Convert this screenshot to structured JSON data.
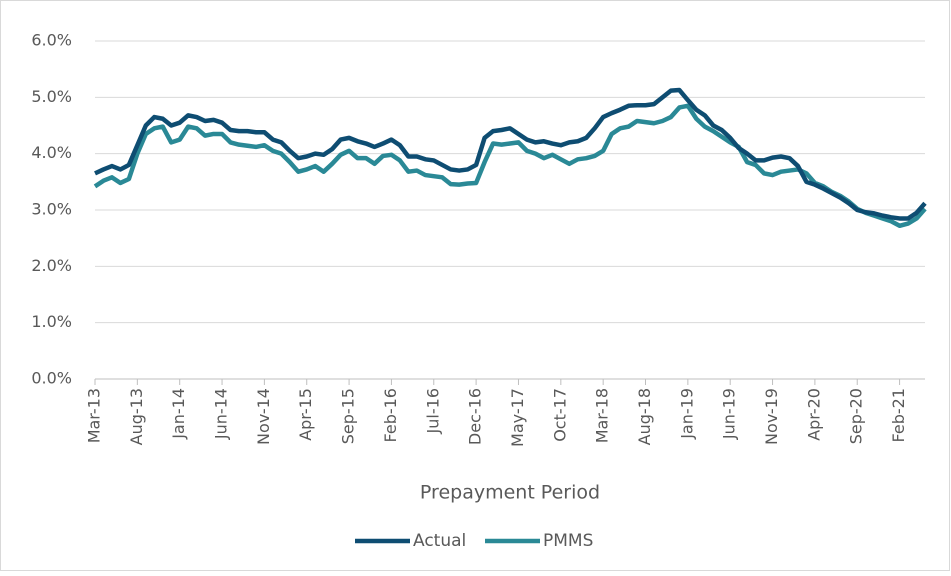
{
  "chart_data": {
    "type": "line",
    "x_label": "Prepayment Period",
    "categories": [
      "Mar-13",
      null,
      null,
      null,
      null,
      "Aug-13",
      null,
      null,
      null,
      null,
      "Jan-14",
      null,
      null,
      null,
      null,
      "Jun-14",
      null,
      null,
      null,
      null,
      "Nov-14",
      null,
      null,
      null,
      null,
      "Apr-15",
      null,
      null,
      null,
      null,
      "Sep-15",
      null,
      null,
      null,
      null,
      "Feb-16",
      null,
      null,
      null,
      null,
      "Jul-16",
      null,
      null,
      null,
      null,
      "Dec-16",
      null,
      null,
      null,
      null,
      "May-17",
      null,
      null,
      null,
      null,
      "Oct-17",
      null,
      null,
      null,
      null,
      "Mar-18",
      null,
      null,
      null,
      null,
      "Aug-18",
      null,
      null,
      null,
      null,
      "Jan-19",
      null,
      null,
      null,
      null,
      "Jun-19",
      null,
      null,
      null,
      null,
      "Nov-19",
      null,
      null,
      null,
      null,
      "Apr-20",
      null,
      null,
      null,
      null,
      "Sep-20",
      null,
      null,
      null,
      null,
      "Feb-21",
      null,
      null,
      null
    ],
    "series": [
      {
        "name": "Actual",
        "color": "#0e4d72",
        "values": [
          3.65,
          3.72,
          3.78,
          3.72,
          3.8,
          4.15,
          4.5,
          4.65,
          4.62,
          4.5,
          4.55,
          4.68,
          4.65,
          4.58,
          4.6,
          4.55,
          4.42,
          4.4,
          4.4,
          4.38,
          4.38,
          4.25,
          4.2,
          4.05,
          3.92,
          3.95,
          4.0,
          3.98,
          4.08,
          4.25,
          4.28,
          4.22,
          4.18,
          4.12,
          4.18,
          4.25,
          4.15,
          3.95,
          3.95,
          3.9,
          3.88,
          3.8,
          3.72,
          3.7,
          3.72,
          3.8,
          4.28,
          4.4,
          4.42,
          4.45,
          4.35,
          4.25,
          4.2,
          4.22,
          4.18,
          4.15,
          4.2,
          4.22,
          4.28,
          4.45,
          4.65,
          4.72,
          4.78,
          4.85,
          4.86,
          4.86,
          4.88,
          5.0,
          5.12,
          5.13,
          4.95,
          4.78,
          4.68,
          4.5,
          4.42,
          4.28,
          4.1,
          4.0,
          3.88,
          3.88,
          3.93,
          3.95,
          3.92,
          3.78,
          3.5,
          3.45,
          3.38,
          3.3,
          3.22,
          3.12,
          3.0,
          2.96,
          2.94,
          2.9,
          2.87,
          2.85,
          2.85,
          2.95,
          3.12
        ]
      },
      {
        "name": "PMMS",
        "color": "#2a8996",
        "values": [
          3.42,
          3.52,
          3.58,
          3.48,
          3.55,
          4.0,
          4.35,
          4.45,
          4.48,
          4.2,
          4.25,
          4.48,
          4.45,
          4.32,
          4.35,
          4.35,
          4.2,
          4.16,
          4.14,
          4.12,
          4.15,
          4.05,
          4.0,
          3.85,
          3.68,
          3.72,
          3.78,
          3.68,
          3.82,
          3.98,
          4.05,
          3.92,
          3.92,
          3.82,
          3.96,
          3.98,
          3.88,
          3.68,
          3.7,
          3.62,
          3.6,
          3.58,
          3.46,
          3.45,
          3.47,
          3.48,
          3.85,
          4.18,
          4.16,
          4.18,
          4.2,
          4.05,
          4.0,
          3.92,
          3.98,
          3.9,
          3.82,
          3.9,
          3.92,
          3.96,
          4.05,
          4.35,
          4.45,
          4.48,
          4.58,
          4.56,
          4.54,
          4.58,
          4.65,
          4.82,
          4.85,
          4.62,
          4.48,
          4.4,
          4.3,
          4.2,
          4.12,
          3.85,
          3.8,
          3.65,
          3.62,
          3.68,
          3.7,
          3.72,
          3.65,
          3.48,
          3.42,
          3.32,
          3.25,
          3.15,
          3.02,
          2.95,
          2.9,
          2.85,
          2.8,
          2.72,
          2.76,
          2.85,
          3.02
        ]
      }
    ],
    "ylim": [
      0,
      6
    ],
    "yticks": [
      {
        "value": 0,
        "label": "0.0%"
      },
      {
        "value": 1,
        "label": "1.0%"
      },
      {
        "value": 2,
        "label": "2.0%"
      },
      {
        "value": 3,
        "label": "3.0%"
      },
      {
        "value": 4,
        "label": "4.0%"
      },
      {
        "value": 5,
        "label": "5.0%"
      },
      {
        "value": 6,
        "label": "6.0%"
      }
    ],
    "grid": true,
    "legend": "bottom"
  }
}
